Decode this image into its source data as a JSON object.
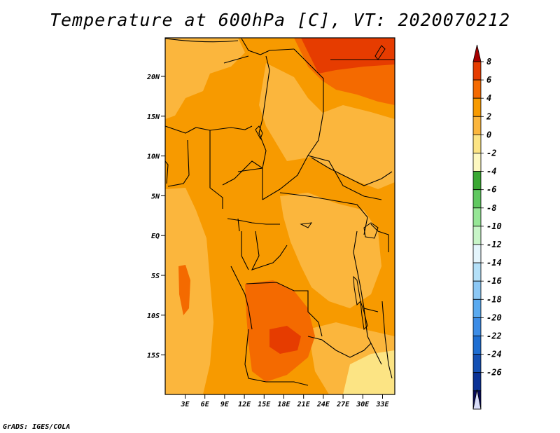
{
  "title": "Temperature at 600hPa [C], VT: 2020070212",
  "credit": "GrADS: IGES/COLA",
  "map": {
    "lat_ticks": [
      "20N",
      "15N",
      "10N",
      "5N",
      "EQ",
      "5S",
      "10S",
      "15S"
    ],
    "lon_ticks": [
      "3E",
      "6E",
      "9E",
      "12E",
      "15E",
      "18E",
      "21E",
      "24E",
      "27E",
      "30E",
      "33E"
    ],
    "lon_range": [
      0,
      35
    ],
    "lat_range": [
      -20,
      24.5
    ]
  },
  "colorbar": {
    "labels": [
      "8",
      "6",
      "4",
      "2",
      "0",
      "-2",
      "-4",
      "-6",
      "-8",
      "-10",
      "-12",
      "-14",
      "-16",
      "-18",
      "-20",
      "-22",
      "-24",
      "-26"
    ],
    "colors": [
      "#a50000",
      "#e63c00",
      "#f46a00",
      "#f79a00",
      "#fbb63d",
      "#fce484",
      "#fdf8c0",
      "#3aa832",
      "#60c860",
      "#96e696",
      "#c8f5c8",
      "#e4f5fc",
      "#b4e0f8",
      "#8cc8f5",
      "#5aaaf0",
      "#3c8ce6",
      "#1e6ed2",
      "#1450b4",
      "#0a3296",
      "#060a5a",
      "#d8dcf8"
    ]
  },
  "colors": {
    "base": "#f79a00",
    "warm_light": "#fbb63d",
    "warm_dark": "#f46a00",
    "hot": "#e63c00",
    "pale": "#fce484",
    "border_line": "#000000"
  }
}
